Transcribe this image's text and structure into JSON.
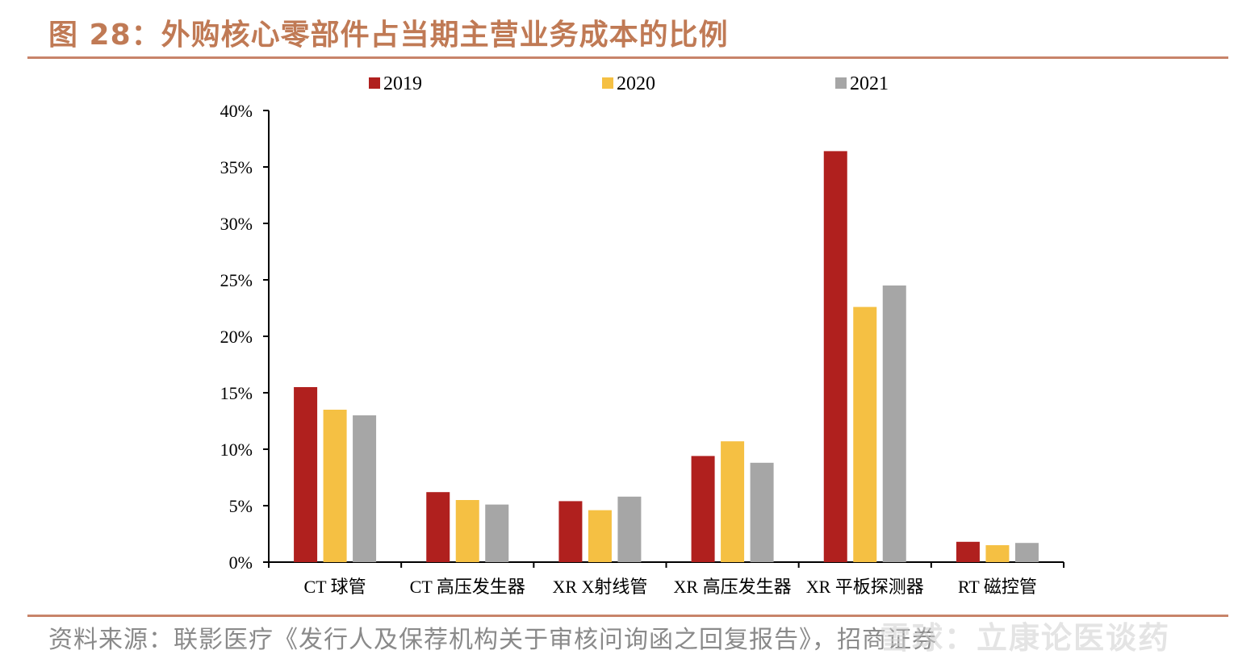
{
  "header": {
    "title": "图 28：外购核心零部件占当期主营业务成本的比例"
  },
  "footer": {
    "source": "资料来源：联影医疗《发行人及保荐机构关于审核问询函之回复报告》，招商证券",
    "watermark": "雪球：立康论医谈药"
  },
  "chart_data": {
    "type": "bar",
    "categories": [
      "CT 球管",
      "CT 高压发生器",
      "XR X射线管",
      "XR 高压发生器",
      "XR 平板探测器",
      "RT 磁控管"
    ],
    "series": [
      {
        "name": "2019",
        "color": "#b0201e",
        "values": [
          15.5,
          6.2,
          5.4,
          9.4,
          36.4,
          1.8
        ]
      },
      {
        "name": "2020",
        "color": "#f5c043",
        "values": [
          13.5,
          5.5,
          4.6,
          10.7,
          22.6,
          1.5
        ]
      },
      {
        "name": "2021",
        "color": "#a6a6a6",
        "values": [
          13.0,
          5.1,
          5.8,
          8.8,
          24.5,
          1.7
        ]
      }
    ],
    "yticks": [
      "0%",
      "5%",
      "10%",
      "15%",
      "20%",
      "25%",
      "30%",
      "35%",
      "40%"
    ],
    "ylim": [
      0,
      40
    ],
    "legend_position": "top",
    "grid": false
  }
}
